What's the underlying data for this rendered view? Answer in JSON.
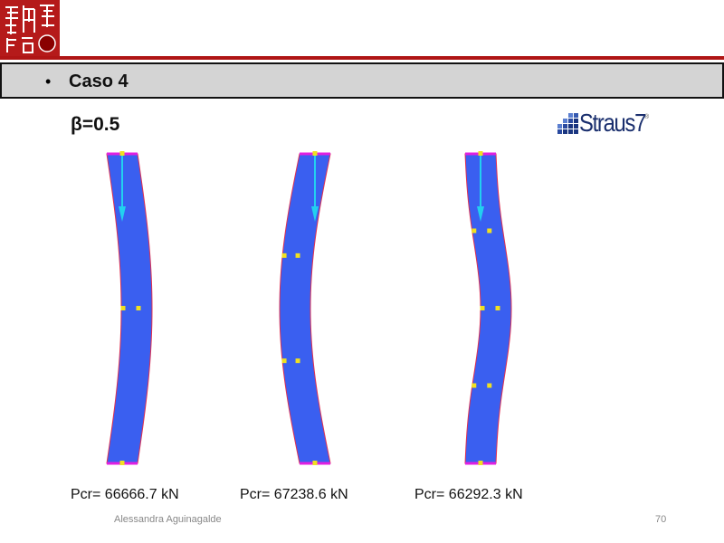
{
  "header": {
    "logo": "seal-logo",
    "title": "Caso 4",
    "bullet": "•"
  },
  "beta_label": "β=0.5",
  "brand_logo": {
    "text": "Straus7",
    "mark": "®"
  },
  "colors": {
    "accent_red": "#b01515",
    "beam_blue": "#3a5ff0",
    "arrow_cyan": "#22d0f0",
    "node_yellow": "#f0e020"
  },
  "modes": [
    {
      "pcr": "Pcr= 66666.7 kN"
    },
    {
      "pcr": "Pcr= 67238.6 kN"
    },
    {
      "pcr": "Pcr= 66292.3 kN"
    }
  ],
  "footer": {
    "author": "Alessandra Aguinagalde",
    "page": "70"
  }
}
